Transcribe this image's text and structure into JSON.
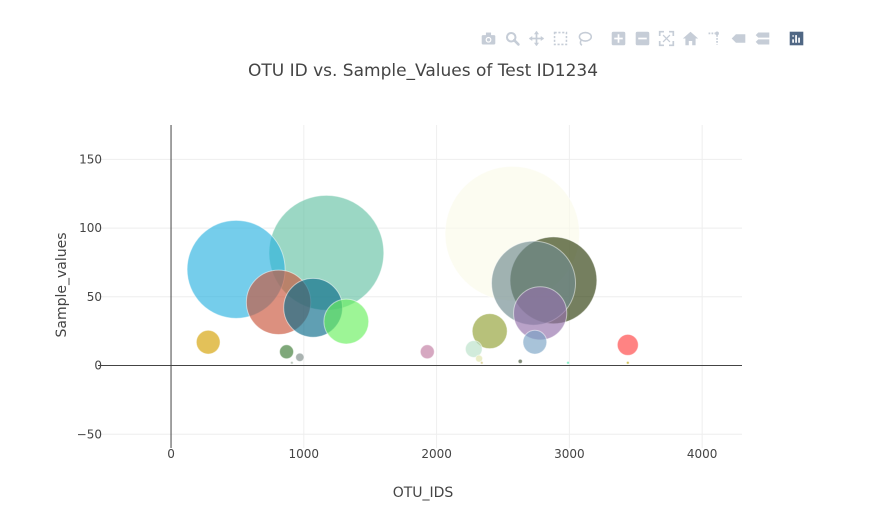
{
  "modebar": {
    "buttons": [
      {
        "name": "camera-icon"
      },
      {
        "name": "zoom-icon"
      },
      {
        "name": "pan-icon"
      },
      {
        "name": "box-select-icon"
      },
      {
        "name": "lasso-select-icon"
      },
      {
        "name": "zoom-in-icon"
      },
      {
        "name": "zoom-out-icon"
      },
      {
        "name": "autoscale-icon"
      },
      {
        "name": "reset-axes-icon"
      },
      {
        "name": "spike-lines-icon"
      },
      {
        "name": "hover-closest-icon"
      },
      {
        "name": "hover-compare-icon"
      },
      {
        "name": "plotly-logo-icon"
      }
    ],
    "icon_color": "#c6cdd7",
    "logo_color": "#506784"
  },
  "chart_data": {
    "type": "scatter",
    "title": "OTU ID vs. Sample_Values of Test ID1234",
    "xlabel": "OTU_IDS",
    "ylabel": "Sample_values",
    "xlim": [
      -550,
      4300
    ],
    "ylim": [
      -60,
      175
    ],
    "xticks": [
      0,
      1000,
      2000,
      3000,
      4000
    ],
    "xtick_labels": [
      "0",
      "1000",
      "2000",
      "3000",
      "4000"
    ],
    "yticks": [
      -50,
      0,
      50,
      100,
      150
    ],
    "ytick_labels": [
      "−50",
      "0",
      "50",
      "100",
      "150"
    ],
    "grid": true,
    "legend": "none",
    "bubble_opacity": 0.65,
    "points": [
      {
        "x": 2570,
        "y": 96,
        "size": 96,
        "color": "#fbfbea"
      },
      {
        "x": 1170,
        "y": 82,
        "size": 82,
        "color": "#66c2a5"
      },
      {
        "x": 490,
        "y": 70,
        "size": 70,
        "color": "#2bb2e0"
      },
      {
        "x": 2880,
        "y": 62,
        "size": 62,
        "color": "#2b3a09"
      },
      {
        "x": 2730,
        "y": 60,
        "size": 60,
        "color": "#6f8a8f"
      },
      {
        "x": 810,
        "y": 46,
        "size": 46,
        "color": "#c9553b"
      },
      {
        "x": 1070,
        "y": 42,
        "size": 42,
        "color": "#0b6b8a"
      },
      {
        "x": 2780,
        "y": 38,
        "size": 38,
        "color": "#9470ab"
      },
      {
        "x": 1320,
        "y": 32,
        "size": 32,
        "color": "#69f05d"
      },
      {
        "x": 2400,
        "y": 25,
        "size": 25,
        "color": "#90a033"
      },
      {
        "x": 280,
        "y": 17,
        "size": 17,
        "color": "#d4a000"
      },
      {
        "x": 2740,
        "y": 17,
        "size": 17,
        "color": "#7aa3c4"
      },
      {
        "x": 3440,
        "y": 15,
        "size": 15,
        "color": "#ff4040"
      },
      {
        "x": 2280,
        "y": 12,
        "size": 12,
        "color": "#b8e0c8"
      },
      {
        "x": 1930,
        "y": 10,
        "size": 10,
        "color": "#c07aa0"
      },
      {
        "x": 870,
        "y": 10,
        "size": 10,
        "color": "#3a7a32"
      },
      {
        "x": 970,
        "y": 6,
        "size": 6,
        "color": "#7c8a87"
      },
      {
        "x": 2320,
        "y": 5,
        "size": 5,
        "color": "#dfe3a8"
      },
      {
        "x": 2630,
        "y": 3,
        "size": 3,
        "color": "#3d4e30"
      },
      {
        "x": 2990,
        "y": 2,
        "size": 2,
        "color": "#3ee6a8"
      },
      {
        "x": 3440,
        "y": 2,
        "size": 2,
        "color": "#b8a000"
      },
      {
        "x": 2340,
        "y": 2,
        "size": 2,
        "color": "#cfc070"
      },
      {
        "x": 910,
        "y": 2,
        "size": 2,
        "color": "#9aaa9a"
      }
    ]
  }
}
